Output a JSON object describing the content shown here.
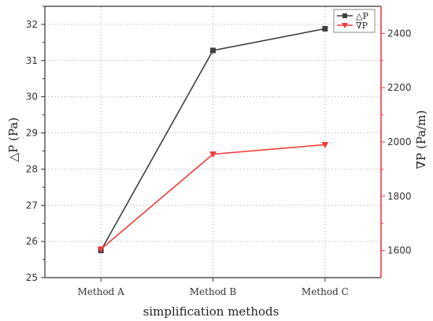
{
  "chart_data": {
    "type": "line",
    "categories": [
      "Method A",
      "Method B",
      "Method C"
    ],
    "xlabel": "simplification methods",
    "ylabel_left": "△P (Pa)",
    "ylabel_right": "∇P (Pa/m)",
    "ylim_left": [
      25,
      32.5
    ],
    "ylim_right": [
      1500,
      2500
    ],
    "yticks_left": [
      25,
      26,
      27,
      28,
      29,
      30,
      31,
      32
    ],
    "yticks_right": [
      1600,
      1800,
      2000,
      2200,
      2400
    ],
    "grid": true,
    "legend_position": "top-right",
    "series": [
      {
        "name": "△P",
        "axis": "left",
        "color": "#404040",
        "marker": "square",
        "values": [
          25.75,
          31.28,
          31.88
        ]
      },
      {
        "name": "∇P",
        "axis": "right",
        "color": "#f03c3c",
        "marker": "triangle-down",
        "values": [
          1605,
          1955,
          1990
        ]
      }
    ]
  }
}
